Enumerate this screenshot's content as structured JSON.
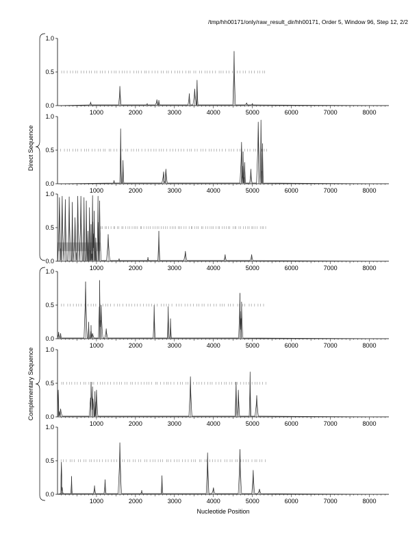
{
  "header": {
    "title": "/tmp/hh00171/only/raw_result_dir/hh00171, Order 5, Window 96, Step 12, 2/2"
  },
  "labels": {
    "direct_group": "Direct Sequence",
    "complementary_group": "Complementary Sequence",
    "xlabel": "Nucleotide Position"
  },
  "colors": {
    "line": "#333333",
    "axis": "#000000",
    "gray_band": "#c0c0c0"
  },
  "chart_data": [
    {
      "type": "line",
      "group": "Direct Sequence",
      "panel": 1,
      "xlim": [
        0,
        8500
      ],
      "ylim": [
        0,
        1
      ],
      "xticks": [
        "1000",
        "2000",
        "3000",
        "4000",
        "5000",
        "6000",
        "7000",
        "8000"
      ],
      "yticks": [
        "0.0",
        "0.5",
        "1.0"
      ],
      "peaks": [
        [
          850,
          0.05
        ],
        [
          1600,
          0.29
        ],
        [
          2300,
          0.03
        ],
        [
          2550,
          0.09
        ],
        [
          2600,
          0.08
        ],
        [
          3380,
          0.18
        ],
        [
          3520,
          0.25
        ],
        [
          3580,
          0.38
        ],
        [
          4530,
          0.81
        ],
        [
          4850,
          0.04
        ],
        [
          5000,
          0.03
        ]
      ],
      "marks_range": [
        100,
        5400
      ],
      "marks_density": 75
    },
    {
      "type": "line",
      "group": "Direct Sequence",
      "panel": 2,
      "xlim": [
        0,
        8500
      ],
      "ylim": [
        0,
        1
      ],
      "xticks": [
        "1000",
        "2000",
        "3000",
        "4000",
        "5000",
        "6000",
        "7000",
        "8000"
      ],
      "yticks": [
        "0.0",
        "0.5",
        "1.0"
      ],
      "peaks": [
        [
          1450,
          0.05
        ],
        [
          1620,
          0.82
        ],
        [
          1680,
          0.35
        ],
        [
          2720,
          0.18
        ],
        [
          2780,
          0.22
        ],
        [
          4720,
          0.62
        ],
        [
          4760,
          0.48
        ],
        [
          4800,
          0.32
        ],
        [
          4960,
          0.22
        ],
        [
          5150,
          0.92
        ],
        [
          5220,
          0.95
        ],
        [
          5260,
          0.6
        ]
      ],
      "marks_range": [
        100,
        5450
      ],
      "marks_density": 75
    },
    {
      "type": "line",
      "group": "Direct Sequence",
      "panel": 3,
      "xlim": [
        0,
        8500
      ],
      "ylim": [
        0,
        1
      ],
      "xticks": [
        "1000",
        "2000",
        "3000",
        "4000",
        "5000",
        "6000",
        "7000",
        "8000"
      ],
      "yticks": [
        "0.0",
        "0.5",
        "1.0"
      ],
      "gray_band": {
        "x0": 0,
        "x1": 1100,
        "y0": 0.15,
        "y1": 0.28
      },
      "peaks": [
        [
          50,
          0.95
        ],
        [
          120,
          0.97
        ],
        [
          200,
          0.92
        ],
        [
          300,
          0.96
        ],
        [
          380,
          0.88
        ],
        [
          450,
          0.65
        ],
        [
          520,
          0.97
        ],
        [
          600,
          0.97
        ],
        [
          680,
          0.95
        ],
        [
          740,
          0.9
        ],
        [
          780,
          0.45
        ],
        [
          820,
          0.8
        ],
        [
          860,
          0.55
        ],
        [
          900,
          0.98
        ],
        [
          940,
          0.75
        ],
        [
          980,
          0.35
        ],
        [
          1040,
          0.97
        ],
        [
          1080,
          0.9
        ],
        [
          1300,
          0.4
        ],
        [
          1580,
          0.04
        ],
        [
          2320,
          0.06
        ],
        [
          2600,
          0.45
        ],
        [
          3280,
          0.15
        ],
        [
          4300,
          0.1
        ],
        [
          4980,
          0.1
        ]
      ],
      "marks_range": [
        1100,
        5400
      ],
      "marks_density": 80
    },
    {
      "type": "line",
      "group": "Complementary Sequence",
      "panel": 4,
      "xlim": [
        0,
        8500
      ],
      "ylim": [
        0,
        1
      ],
      "xticks": [
        "1000",
        "2000",
        "3000",
        "4000",
        "5000",
        "6000",
        "7000",
        "8000"
      ],
      "yticks": [
        "0.0",
        "0.5",
        "1.0"
      ],
      "peaks": [
        [
          30,
          0.1
        ],
        [
          80,
          0.08
        ],
        [
          720,
          0.85
        ],
        [
          800,
          0.25
        ],
        [
          860,
          0.2
        ],
        [
          900,
          0.08
        ],
        [
          1080,
          0.87
        ],
        [
          1120,
          0.5
        ],
        [
          1250,
          0.15
        ],
        [
          2480,
          0.5
        ],
        [
          2840,
          0.48
        ],
        [
          2900,
          0.3
        ],
        [
          4680,
          0.68
        ],
        [
          4720,
          0.55
        ]
      ],
      "marks_range": [
        100,
        5350
      ],
      "marks_density": 70
    },
    {
      "type": "line",
      "group": "Complementary Sequence",
      "panel": 5,
      "xlim": [
        0,
        8500
      ],
      "ylim": [
        0,
        1
      ],
      "xticks": [
        "1000",
        "2000",
        "3000",
        "4000",
        "5000",
        "6000",
        "7000",
        "8000"
      ],
      "yticks": [
        "0.0",
        "0.5",
        "1.0"
      ],
      "peaks": [
        [
          20,
          0.4
        ],
        [
          80,
          0.12
        ],
        [
          860,
          0.52
        ],
        [
          900,
          0.45
        ],
        [
          960,
          0.38
        ],
        [
          1000,
          0.4
        ],
        [
          3410,
          0.6
        ],
        [
          4580,
          0.52
        ],
        [
          4640,
          0.4
        ],
        [
          4940,
          0.67
        ],
        [
          5110,
          0.32
        ]
      ],
      "marks_range": [
        100,
        5400
      ],
      "marks_density": 75
    },
    {
      "type": "line",
      "group": "Complementary Sequence",
      "panel": 6,
      "xlim": [
        0,
        8500
      ],
      "ylim": [
        0,
        1
      ],
      "xticks": [
        "1000",
        "2000",
        "3000",
        "4000",
        "5000",
        "6000",
        "7000",
        "8000"
      ],
      "yticks": [
        "0.0",
        "0.5",
        "1.0"
      ],
      "peaks": [
        [
          100,
          0.48
        ],
        [
          120,
          0.1
        ],
        [
          360,
          0.27
        ],
        [
          950,
          0.13
        ],
        [
          1220,
          0.22
        ],
        [
          1600,
          0.77
        ],
        [
          2160,
          0.06
        ],
        [
          2680,
          0.28
        ],
        [
          3850,
          0.62
        ],
        [
          4000,
          0.1
        ],
        [
          4680,
          0.67
        ],
        [
          5020,
          0.36
        ],
        [
          5180,
          0.08
        ]
      ],
      "marks_range": [
        100,
        5400
      ],
      "marks_density": 75
    }
  ]
}
